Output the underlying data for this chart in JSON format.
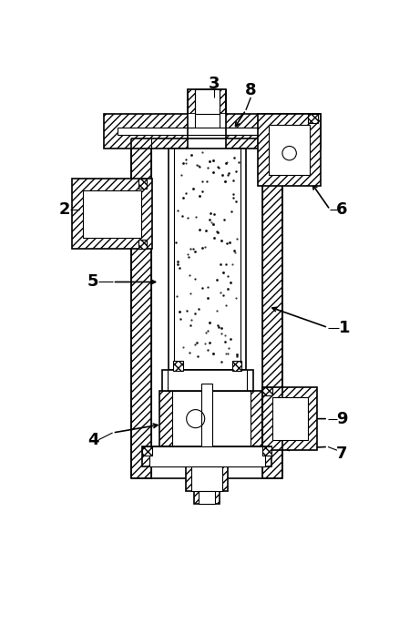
{
  "fig_width": 4.38,
  "fig_height": 6.86,
  "dpi": 100,
  "bg_color": "#ffffff",
  "lc": "#000000"
}
